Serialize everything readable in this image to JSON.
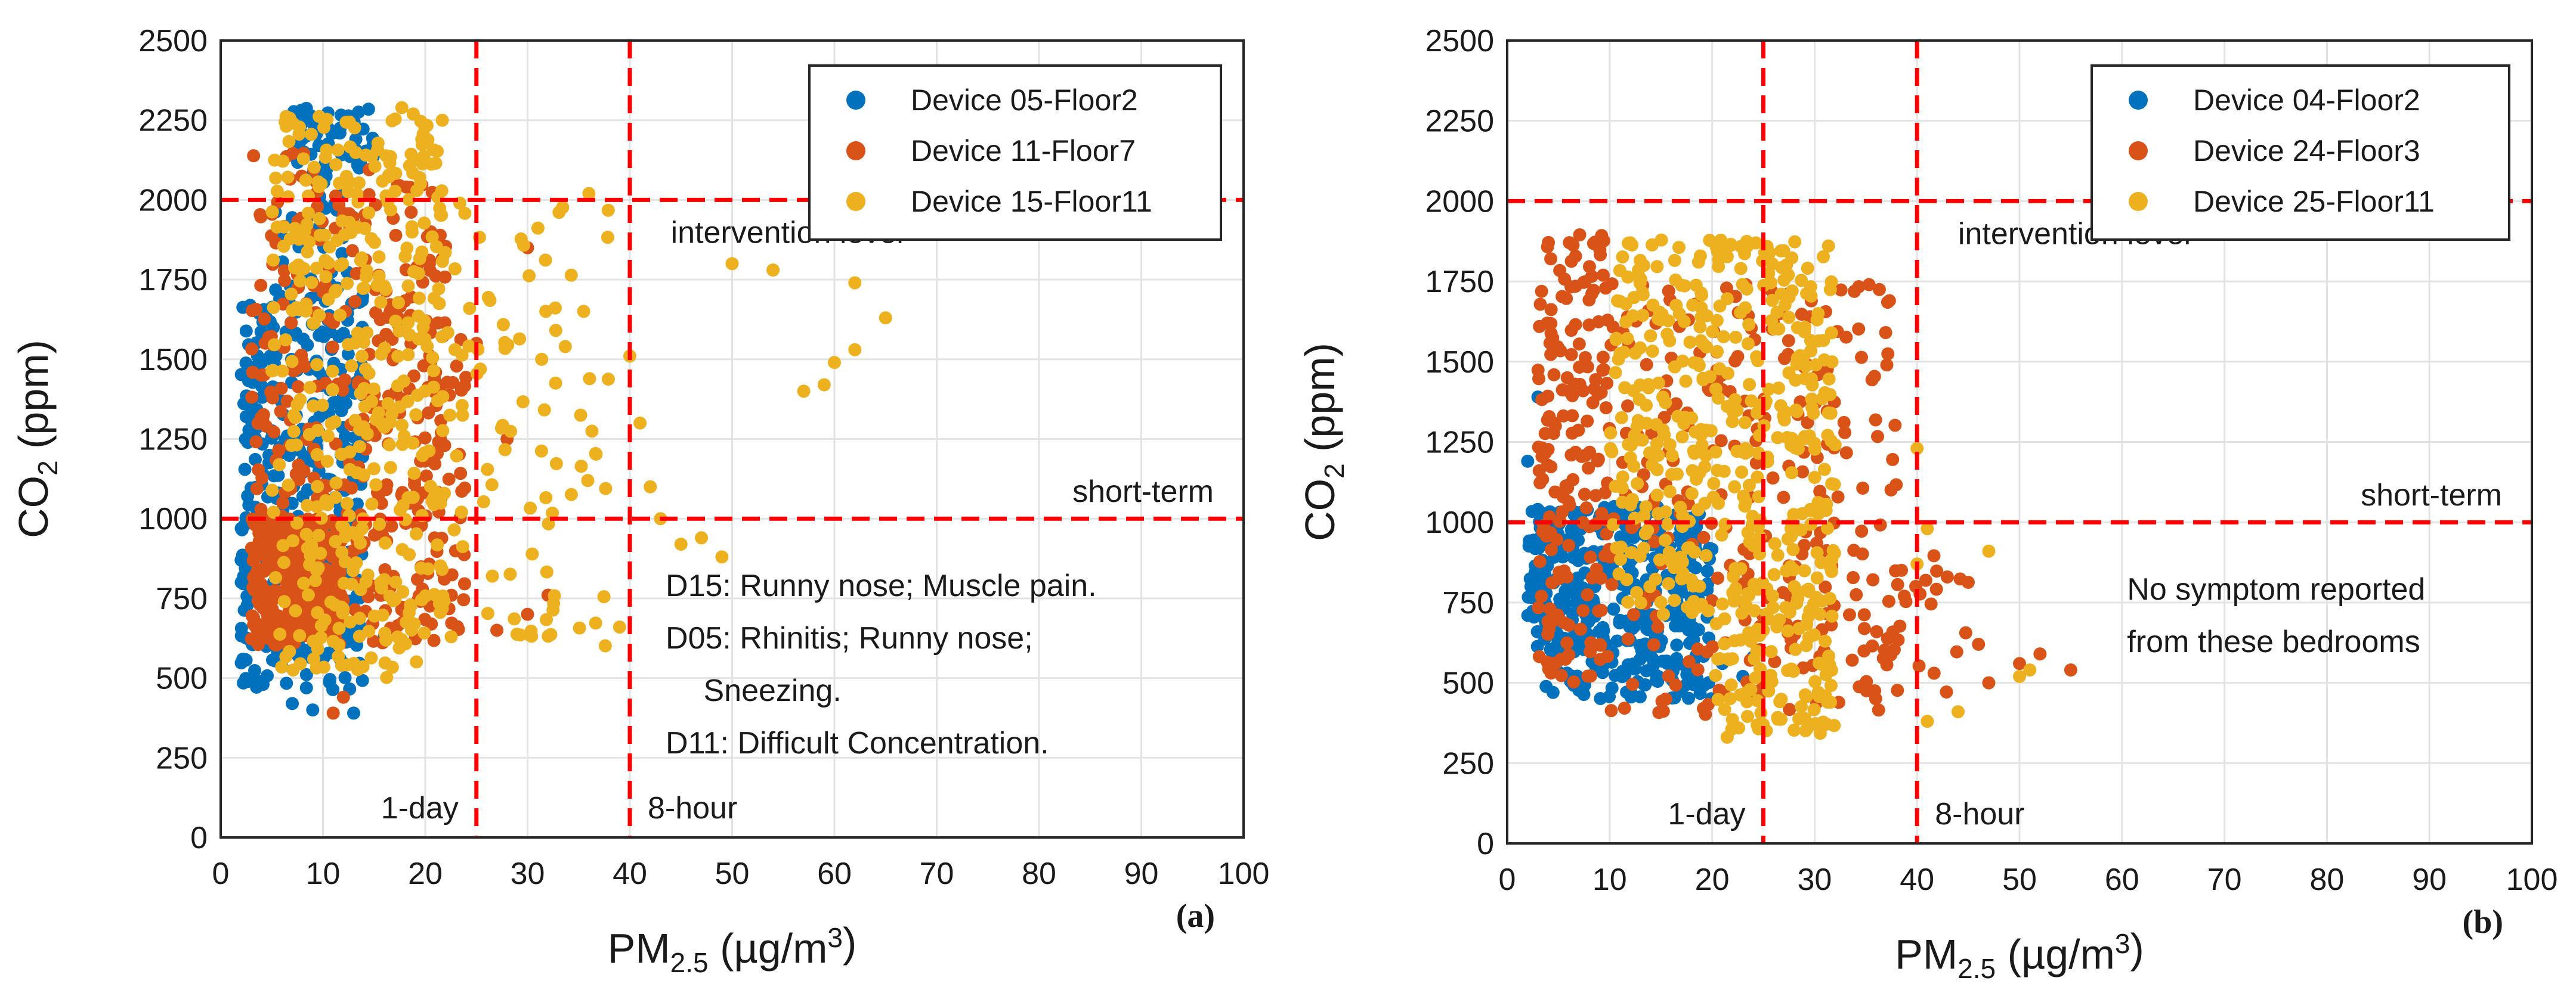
{
  "colors": {
    "blue": "#0072BD",
    "orange": "#D95319",
    "yellow": "#EDB120",
    "reference": "#FF0000",
    "grid": "#e3e3e3"
  },
  "chart_data": [
    {
      "type": "scatter",
      "panel_label": "(a)",
      "xlabel_main": "PM",
      "xlabel_sub": "2.5",
      "xlabel_unit": " (µg/m",
      "xlabel_unit_sup": "3",
      "xlabel_close": ")",
      "ylabel_main": "CO",
      "ylabel_sub": "2",
      "ylabel_unit": " (ppm)",
      "xlim": [
        0,
        100
      ],
      "ylim": [
        0,
        2500
      ],
      "xticks": [
        "0",
        "10",
        "20",
        "30",
        "40",
        "50",
        "60",
        "70",
        "80",
        "90",
        "100"
      ],
      "yticks": [
        "0",
        "250",
        "500",
        "750",
        "1000",
        "1250",
        "1500",
        "1750",
        "2000",
        "2250",
        "2500"
      ],
      "legend_position": "top-right",
      "series": [
        {
          "name": "Device 05-Floor2",
          "color": "#0072BD",
          "regions": [
            {
              "x": [
                2,
                14
              ],
              "y": [
                450,
                1700
              ],
              "n": 380
            },
            {
              "x": [
                7,
                15
              ],
              "y": [
                2100,
                2290
              ],
              "n": 60
            },
            {
              "x": [
                5,
                13
              ],
              "y": [
                1700,
                2100
              ],
              "n": 35
            }
          ],
          "points": [
            [
              7,
              420
            ],
            [
              9,
              400
            ],
            [
              13,
              390
            ],
            [
              16,
              630
            ],
            [
              2,
              870
            ],
            [
              4,
              1490
            ]
          ]
        },
        {
          "name": "Device 11-Floor7",
          "color": "#D95319",
          "regions": [
            {
              "x": [
                3,
                12
              ],
              "y": [
                620,
                1000
              ],
              "n": 320
            },
            {
              "x": [
                3,
                24
              ],
              "y": [
                600,
                1600
              ],
              "n": 300
            },
            {
              "x": [
                3,
                22
              ],
              "y": [
                1600,
                2150
              ],
              "n": 110
            }
          ],
          "points": [
            [
              11,
              390
            ],
            [
              12,
              440
            ],
            [
              27,
              650
            ],
            [
              30,
              700
            ],
            [
              32,
              760
            ],
            [
              25,
              1550
            ],
            [
              28,
              1250
            ],
            [
              30,
              1850
            ]
          ]
        },
        {
          "name": "Device 15-Floor11",
          "color": "#EDB120",
          "regions": [
            {
              "x": [
                5,
                22
              ],
              "y": [
                500,
                2290
              ],
              "n": 420
            },
            {
              "x": [
                22,
                38
              ],
              "y": [
                600,
                2000
              ],
              "n": 90
            }
          ],
          "points": [
            [
              36,
              2020
            ],
            [
              40,
              1510
            ],
            [
              41,
              1300
            ],
            [
              42,
              1100
            ],
            [
              43,
              1000
            ],
            [
              45,
              920
            ],
            [
              47,
              940
            ],
            [
              49,
              880
            ],
            [
              39,
              660
            ],
            [
              50,
              1800
            ],
            [
              54,
              1780
            ],
            [
              57,
              1400
            ],
            [
              59,
              1420
            ],
            [
              60,
              1490
            ],
            [
              62,
              1740
            ],
            [
              62,
              1530
            ],
            [
              65,
              1630
            ]
          ]
        }
      ],
      "reference_lines": {
        "vertical": [
          {
            "x": 25,
            "label": "1-day",
            "label_side": "left"
          },
          {
            "x": 40,
            "label": "8-hour",
            "label_side": "right"
          }
        ],
        "horizontal": [
          {
            "y": 2000,
            "label": "intervention level"
          },
          {
            "y": 1000,
            "label": "short-term"
          }
        ]
      },
      "annotations": [
        "D15: Runny nose; Muscle pain.",
        "D05: Rhinitis; Runny nose;",
        "Sneezing.",
        "D11: Difficult Concentration."
      ]
    },
    {
      "type": "scatter",
      "panel_label": "(b)",
      "xlabel_main": "PM",
      "xlabel_sub": "2.5",
      "xlabel_unit": " (µg/m",
      "xlabel_unit_sup": "3",
      "xlabel_close": ")",
      "ylabel_main": "CO",
      "ylabel_sub": "2",
      "ylabel_unit": " (ppm)",
      "xlim": [
        0,
        100
      ],
      "ylim": [
        0,
        2500
      ],
      "xticks": [
        "0",
        "10",
        "20",
        "30",
        "40",
        "50",
        "60",
        "70",
        "80",
        "90",
        "100"
      ],
      "yticks": [
        "0",
        "250",
        "500",
        "750",
        "1000",
        "1250",
        "1500",
        "1750",
        "2000",
        "2250",
        "2500"
      ],
      "legend_position": "top-right",
      "series": [
        {
          "name": "Device 04-Floor2",
          "color": "#0072BD",
          "regions": [
            {
              "x": [
                2,
                20
              ],
              "y": [
                450,
                1050
              ],
              "n": 420
            }
          ],
          "points": [
            [
              3,
              1390
            ],
            [
              2,
              1190
            ],
            [
              21,
              560
            ],
            [
              23,
              520
            ],
            [
              24,
              580
            ]
          ]
        },
        {
          "name": "Device 24-Floor3",
          "color": "#D95319",
          "regions": [
            {
              "x": [
                3,
                10
              ],
              "y": [
                500,
                1900
              ],
              "n": 180
            },
            {
              "x": [
                10,
                38
              ],
              "y": [
                400,
                1750
              ],
              "n": 260
            },
            {
              "x": [
                35,
                45
              ],
              "y": [
                450,
                900
              ],
              "n": 30
            }
          ],
          "points": [
            [
              46,
              620
            ],
            [
              50,
              560
            ],
            [
              52,
              590
            ],
            [
              55,
              540
            ],
            [
              47,
              500
            ]
          ]
        },
        {
          "name": "Device 25-Floor11",
          "color": "#EDB120",
          "regions": [
            {
              "x": [
                10,
                32
              ],
              "y": [
                700,
                1880
              ],
              "n": 420
            },
            {
              "x": [
                20,
                32
              ],
              "y": [
                330,
                800
              ],
              "n": 120
            }
          ],
          "points": [
            [
              40,
              1230
            ],
            [
              41,
              980
            ],
            [
              40,
              870
            ],
            [
              44,
              410
            ],
            [
              41,
              380
            ],
            [
              47,
              910
            ],
            [
              50,
              520
            ],
            [
              51,
              540
            ]
          ]
        }
      ],
      "reference_lines": {
        "vertical": [
          {
            "x": 25,
            "label": "1-day",
            "label_side": "left"
          },
          {
            "x": 40,
            "label": "8-hour",
            "label_side": "right"
          }
        ],
        "horizontal": [
          {
            "y": 2000,
            "label": "intervention level"
          },
          {
            "y": 1000,
            "label": "short-term"
          }
        ]
      },
      "annotations": [
        "No symptom reported",
        "from these bedrooms"
      ]
    }
  ]
}
